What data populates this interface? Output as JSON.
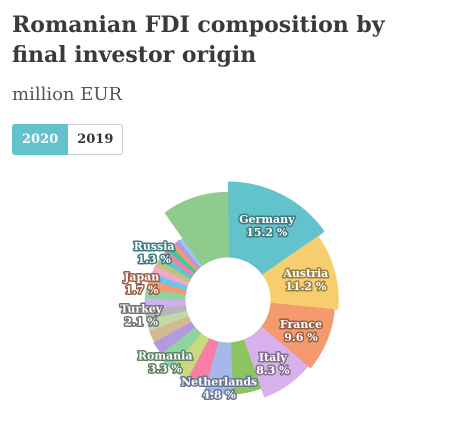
{
  "header": {
    "title": "Romanian FDI composition by final investor origin",
    "subtitle": "million EUR"
  },
  "tabs": [
    {
      "label": "2020",
      "active": true
    },
    {
      "label": "2019",
      "active": false
    }
  ],
  "chart_data": {
    "type": "pie",
    "donut": true,
    "slices": [
      {
        "name": "Germany",
        "value": 15.2,
        "label": "15.2 %",
        "color": "#63c3cc"
      },
      {
        "name": "Austria",
        "value": 11.2,
        "label": "11.2 %",
        "color": "#f7ce6e"
      },
      {
        "name": "France",
        "value": 9.6,
        "label": "9.6 %",
        "color": "#f49a6e"
      },
      {
        "name": "Italy",
        "value": 8.3,
        "label": "8.3 %",
        "color": "#d7b0ec"
      },
      {
        "name": "",
        "value": 4.9,
        "label": "",
        "color": "#8bc460"
      },
      {
        "name": "Netherlands",
        "value": 4.8,
        "label": "4.8 %",
        "color": "#a4b9ea"
      },
      {
        "name": "",
        "value": 3.6,
        "label": "",
        "color": "#f77fa6"
      },
      {
        "name": "",
        "value": 3.4,
        "label": "",
        "color": "#cad97e"
      },
      {
        "name": "Romania",
        "value": 3.3,
        "label": "3.3 %",
        "color": "#8ed3a0"
      },
      {
        "name": "",
        "value": 2.5,
        "label": "",
        "color": "#b39ae0"
      },
      {
        "name": "",
        "value": 2.3,
        "label": "",
        "color": "#d5b894"
      },
      {
        "name": "",
        "value": 2.2,
        "label": "",
        "color": "#c2d8a8"
      },
      {
        "name": "Turkey",
        "value": 2.1,
        "label": "2.1 %",
        "color": "#b6b6b6"
      },
      {
        "name": "",
        "value": 2.0,
        "label": "",
        "color": "#cdb0f0"
      },
      {
        "name": "",
        "value": 1.9,
        "label": "",
        "color": "#8ed3a0"
      },
      {
        "name": "Japan",
        "value": 1.7,
        "label": "1.7 %",
        "color": "#f49a6e"
      },
      {
        "name": "",
        "value": 1.6,
        "label": "",
        "color": "#6fc4ee"
      },
      {
        "name": "",
        "value": 1.5,
        "label": "",
        "color": "#f5a8c4"
      },
      {
        "name": "",
        "value": 1.4,
        "label": "",
        "color": "#b9c47e"
      },
      {
        "name": "Russia",
        "value": 1.3,
        "label": "1.3 %",
        "color": "#63c3cc"
      },
      {
        "name": "",
        "value": 1.2,
        "label": "",
        "color": "#f77fa6"
      },
      {
        "name": "",
        "value": 1.1,
        "label": "",
        "color": "#3fc9a0"
      },
      {
        "name": "",
        "value": 1.0,
        "label": "",
        "color": "#f49a6e"
      },
      {
        "name": "",
        "value": 1.0,
        "label": "",
        "color": "#b39ae0"
      },
      {
        "name": "",
        "value": 0.9,
        "label": "",
        "color": "#9fc4ee"
      },
      {
        "name": "",
        "value": 10.0,
        "label": "",
        "color": "#8fcb8c"
      }
    ]
  }
}
